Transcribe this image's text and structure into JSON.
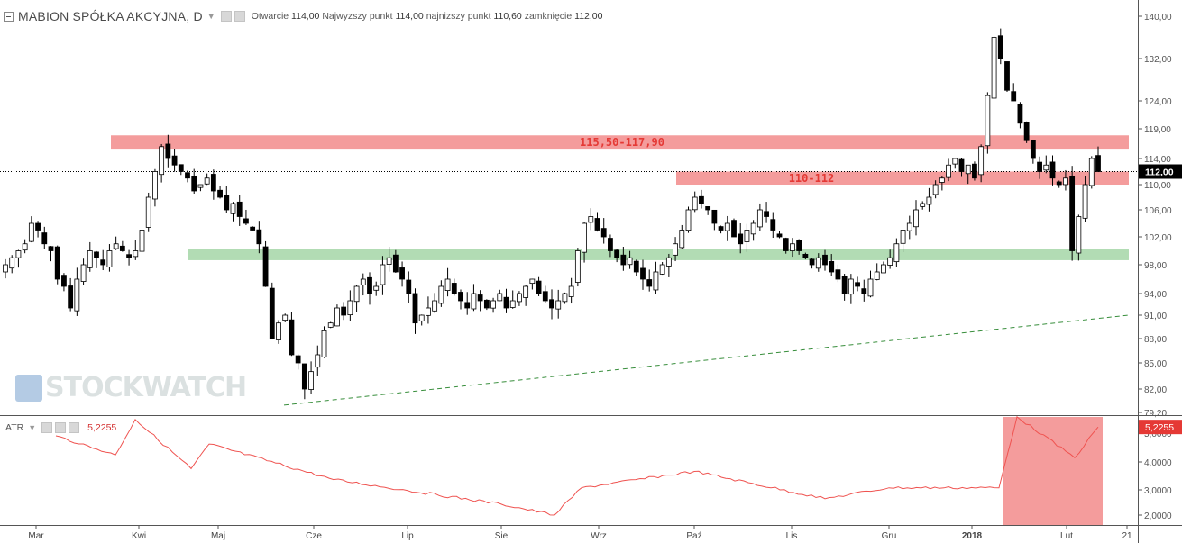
{
  "header": {
    "symbol": "MABION SPÓŁKA AKCYJNA, D",
    "open_label": "Otwarcie",
    "open": "114,00",
    "high_label": "Najwyzszy punkt",
    "high": "114,00",
    "low_label": "najnizszy punkt",
    "low": "110,60",
    "close_label": "zamknięcie",
    "close": "112,00"
  },
  "indicator": {
    "name": "ATR",
    "value": "5,2255"
  },
  "watermark": "STOCKWATCH",
  "colors": {
    "up": "#ffffff",
    "down": "#000000",
    "resistance": "#f28b8b",
    "support": "#a5d6a7",
    "trend": "#388e3c",
    "atr": "#ef5350",
    "last_price": "#000000"
  },
  "chart_data": {
    "type": "candlestick",
    "title": "MABION SPÓŁKA AKCYJNA, D",
    "x_ticks": [
      "Mar",
      "Kwi",
      "Maj",
      "Cze",
      "Lip",
      "Sie",
      "Wrz",
      "Paź",
      "Lis",
      "Gru",
      "2018",
      "Lut",
      "21"
    ],
    "y_ticks": [
      "79,20",
      "82,00",
      "85,00",
      "88,00",
      "91,00",
      "94,00",
      "98,00",
      "102,00",
      "106,00",
      "110,00",
      "114,00",
      "119,00",
      "124,00",
      "132,00",
      "140,00"
    ],
    "ylim": [
      79.2,
      140
    ],
    "last_price": "112,00",
    "zones": [
      {
        "label": "115,50-117,90",
        "low": 115.5,
        "high": 117.9,
        "start": "Kwi",
        "color": "red"
      },
      {
        "label": "110-112",
        "low": 110,
        "high": 112,
        "start": "Paź",
        "color": "red"
      },
      {
        "label": "",
        "low": 98.8,
        "high": 100.2,
        "start": "Kwi",
        "color": "green"
      }
    ],
    "trendline": {
      "from": [
        80.4,
        79.2
      ],
      "to": [
        91,
        21
      ],
      "style": "dashed"
    },
    "closes": [
      98,
      99,
      100,
      101,
      104,
      103,
      101,
      100,
      96,
      95,
      92,
      96,
      98,
      100,
      99,
      98,
      100,
      101,
      100,
      99,
      100,
      103,
      108,
      112,
      116,
      114,
      113,
      112,
      111,
      109,
      110,
      111,
      109,
      108,
      106,
      107,
      105,
      104,
      103,
      101,
      95,
      88,
      90,
      91,
      86,
      85,
      82,
      84,
      86,
      89,
      90,
      92,
      91,
      93,
      95,
      96,
      94,
      95,
      98,
      99,
      97,
      96,
      94,
      90,
      91,
      92,
      93,
      95,
      96,
      94,
      93,
      92,
      94,
      93,
      92,
      93,
      94,
      92,
      93,
      94,
      95,
      96,
      94,
      93,
      92,
      93,
      94,
      95,
      100,
      104,
      105,
      103,
      102,
      100,
      99,
      98,
      99,
      97,
      96,
      95,
      97,
      98,
      99,
      101,
      103,
      106,
      108,
      107,
      106,
      104,
      103,
      104,
      102,
      101,
      103,
      104,
      106,
      105,
      103,
      102,
      100,
      101,
      100,
      99,
      98,
      99,
      98,
      97,
      96,
      94,
      96,
      95,
      94,
      96,
      97,
      98,
      99,
      101,
      103,
      104,
      106,
      107,
      108,
      110,
      111,
      113,
      114,
      112,
      113,
      111,
      116,
      125,
      136,
      132,
      126,
      124,
      120,
      117,
      114,
      112,
      113,
      111,
      110,
      111,
      100,
      105,
      110,
      114,
      112
    ],
    "atr": [
      {
        "x": "Mar",
        "y": 4.9
      },
      {
        "x": "Kwi",
        "y": 4.2
      },
      {
        "x": "Kwi",
        "y": 5.5
      },
      {
        "x": "Maj",
        "y": 3.7
      },
      {
        "x": "Maj",
        "y": 4.6
      },
      {
        "x": "Cze",
        "y": 3.3
      },
      {
        "x": "Lip",
        "y": 2.9
      },
      {
        "x": "Sie",
        "y": 2.4
      },
      {
        "x": "Sie",
        "y": 2.0
      },
      {
        "x": "Wrz",
        "y": 3.0
      },
      {
        "x": "Paź",
        "y": 3.6
      },
      {
        "x": "Lis",
        "y": 2.6
      },
      {
        "x": "Gru",
        "y": 3.0
      },
      {
        "x": "2018",
        "y": 3.0
      },
      {
        "x": "2018",
        "y": 5.6
      },
      {
        "x": "Lut",
        "y": 4.1
      },
      {
        "x": "Lut",
        "y": 5.2255
      }
    ],
    "atr_ticks": [
      "2,0000",
      "3,0000",
      "4,0000",
      "5,0000"
    ]
  }
}
